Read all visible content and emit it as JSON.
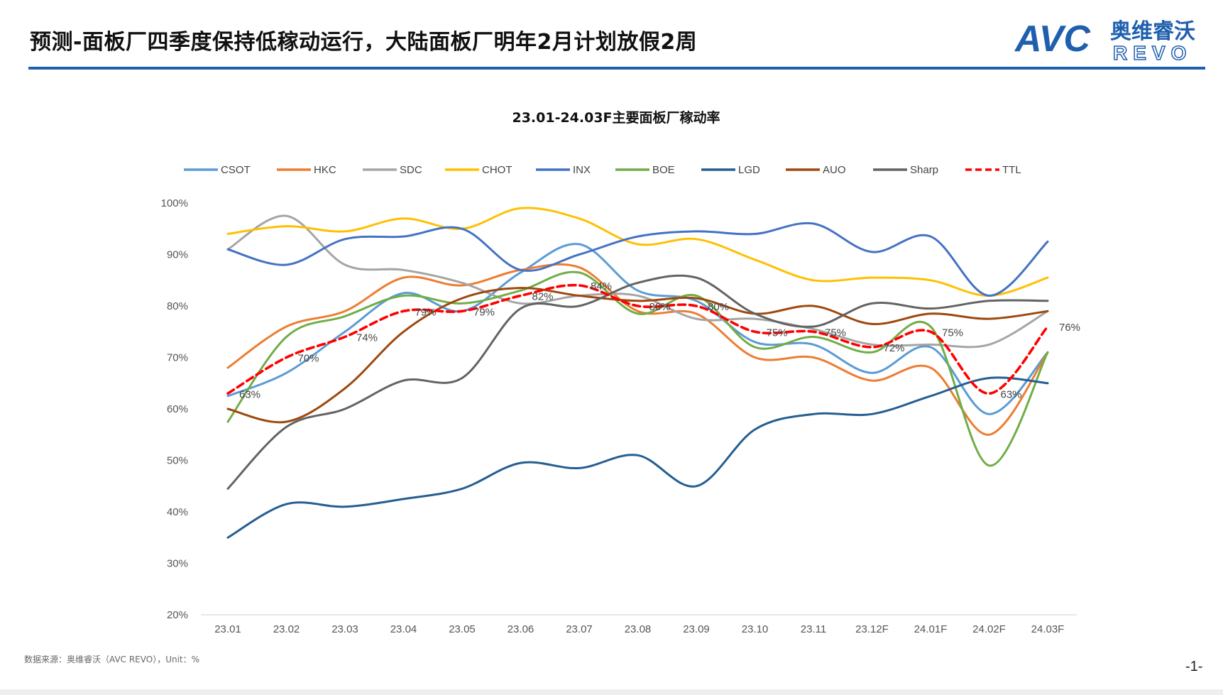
{
  "header": {
    "title": "预测-面板厂四季度保持低稼动运行，大陆面板厂明年2月计划放假2周",
    "logo": {
      "brand_text": "AVC",
      "cn_text": "奥维睿沃",
      "en_text": "REVO"
    }
  },
  "footer": {
    "source": "数据来源：奥维睿沃（AVC REVO），Unit：%",
    "page_number": "-1-"
  },
  "colors": {
    "title_rule": "#1f5fae",
    "CSOT": "#5b9bd5",
    "HKC": "#ed7d31",
    "SDC": "#a5a5a5",
    "CHOT": "#ffc000",
    "INX": "#4472c4",
    "BOE": "#70ad47",
    "LGD": "#255e91",
    "AUO": "#9e480e",
    "Sharp": "#636363",
    "TTL": "#ff0000"
  },
  "chart_data": {
    "type": "line",
    "title": "23.01-24.03F主要面板厂稼动率",
    "categories": [
      "23.01",
      "23.02",
      "23.03",
      "23.04",
      "23.05",
      "23.06",
      "23.07",
      "23.08",
      "23.09",
      "23.10",
      "23.11",
      "23.12F",
      "24.01F",
      "24.02F",
      "24.03F"
    ],
    "y_tick_labels": [
      "100%",
      "90%",
      "80%",
      "70%",
      "60%",
      "50%",
      "40%",
      "30%",
      "20%"
    ],
    "ylim": [
      20,
      100
    ],
    "legend_position": "top",
    "series": [
      {
        "name": "CSOT",
        "values": [
          62.5,
          67,
          75,
          82.5,
          79,
          86.5,
          92,
          83,
          81,
          73,
          72.5,
          67,
          72,
          59,
          71
        ]
      },
      {
        "name": "HKC",
        "values": [
          68,
          76,
          79,
          85.5,
          84,
          87,
          87.5,
          79,
          78.5,
          70,
          70,
          65.5,
          68,
          55,
          71
        ]
      },
      {
        "name": "SDC",
        "values": [
          91,
          97.5,
          88,
          87,
          84.5,
          80.5,
          82,
          82,
          77.5,
          77.5,
          75.5,
          72.5,
          72.5,
          72.5,
          79
        ]
      },
      {
        "name": "CHOT",
        "values": [
          94,
          95.5,
          94.5,
          97,
          95,
          99,
          97,
          92,
          93,
          89,
          85,
          85.5,
          85,
          82,
          85.5
        ]
      },
      {
        "name": "INX",
        "values": [
          91,
          88,
          93,
          93.5,
          95,
          87,
          90,
          93.5,
          94.5,
          94,
          96,
          90.5,
          93.5,
          82,
          92.5
        ]
      },
      {
        "name": "BOE",
        "values": [
          57.5,
          74,
          78,
          82,
          80.5,
          83,
          86.5,
          78.5,
          82,
          72,
          74,
          71,
          76,
          49,
          71
        ]
      },
      {
        "name": "LGD",
        "values": [
          35,
          41.5,
          41,
          42.5,
          44.5,
          49.5,
          48.5,
          51,
          45,
          56,
          59,
          59,
          62.5,
          66,
          65
        ]
      },
      {
        "name": "AUO",
        "values": [
          60,
          57.5,
          64,
          75,
          81.5,
          83.5,
          82,
          81,
          81.5,
          78.5,
          80,
          76.5,
          78.5,
          77.5,
          79
        ]
      },
      {
        "name": "Sharp",
        "values": [
          44.5,
          56.5,
          60,
          65.5,
          66,
          79.5,
          80,
          84.5,
          85.5,
          78.5,
          76,
          80.5,
          79.5,
          81,
          81
        ]
      },
      {
        "name": "TTL",
        "values": [
          63,
          70,
          74,
          79,
          79,
          82,
          84,
          80,
          80,
          75,
          75,
          72,
          75,
          63,
          76
        ],
        "data_labels": [
          "63%",
          "70%",
          "74%",
          "79%",
          "79%",
          "82%",
          "84%",
          "80%",
          "80%",
          "75%",
          "75%",
          "72%",
          "75%",
          "63%",
          "76%"
        ]
      }
    ]
  }
}
